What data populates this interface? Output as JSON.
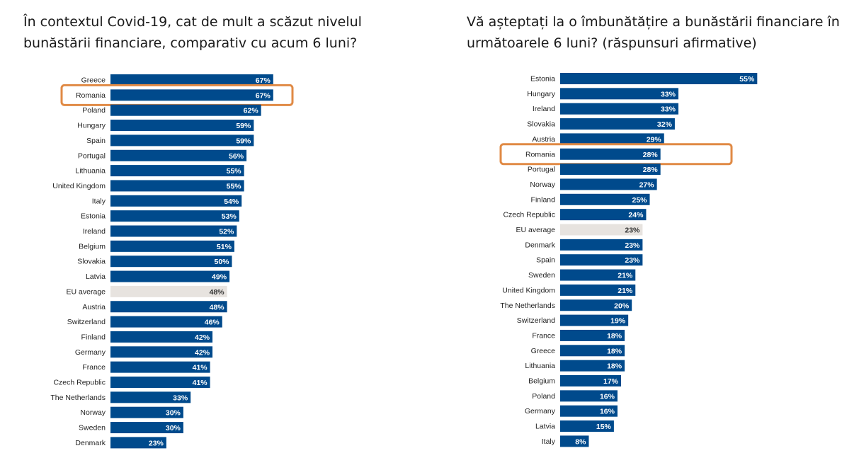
{
  "colors": {
    "bar": "#004a8c",
    "average_bar": "#e7e3df",
    "highlight": "#e08a45",
    "value_text": "#ffffff",
    "average_text": "#333333"
  },
  "chart_data": [
    {
      "type": "bar",
      "orientation": "horizontal",
      "title": "În contextul Covid-19, cat de mult a scăzut nivelul bunăstării financiare, comparativ cu acum 6 luni?",
      "unit": "%",
      "highlight": "Romania",
      "average_category": "EU average",
      "categories": [
        "Greece",
        "Romania",
        "Poland",
        "Hungary",
        "Spain",
        "Portugal",
        "Lithuania",
        "United Kingdom",
        "Italy",
        "Estonia",
        "Ireland",
        "Belgium",
        "Slovakia",
        "Latvia",
        "EU average",
        "Austria",
        "Switzerland",
        "Finland",
        "Germany",
        "France",
        "Czech Republic",
        "The Netherlands",
        "Norway",
        "Sweden",
        "Denmark"
      ],
      "values": [
        67,
        67,
        62,
        59,
        59,
        56,
        55,
        55,
        54,
        53,
        52,
        51,
        50,
        49,
        48,
        48,
        46,
        42,
        42,
        41,
        41,
        33,
        30,
        30,
        23
      ],
      "labels": [
        "67%",
        "67%",
        "62%",
        "59%",
        "59%",
        "56%",
        "55%",
        "55%",
        "54%",
        "53%",
        "52%",
        "51%",
        "50%",
        "49%",
        "48%",
        "48%",
        "46%",
        "42%",
        "42%",
        "41%",
        "41%",
        "33%",
        "30%",
        "30%",
        "23%"
      ]
    },
    {
      "type": "bar",
      "orientation": "horizontal",
      "title": "Vă așteptați la o îmbunătățire a bunăstării financiare în următoarele 6 luni? (răspunsuri afirmative)",
      "unit": "%",
      "highlight": "Romania",
      "average_category": "EU average",
      "categories": [
        "Estonia",
        "Hungary",
        "Ireland",
        "Slovakia",
        "Austria",
        "Romania",
        "Portugal",
        "Norway",
        "Finland",
        "Czech Republic",
        "EU average",
        "Denmark",
        "Spain",
        "Sweden",
        "United Kingdom",
        "The Netherlands",
        "Switzerland",
        "France",
        "Greece",
        "Lithuania",
        "Belgium",
        "Poland",
        "Germany",
        "Latvia",
        "Italy"
      ],
      "values": [
        55,
        33,
        33,
        32,
        29,
        28,
        28,
        27,
        25,
        24,
        23,
        23,
        23,
        21,
        21,
        20,
        19,
        18,
        18,
        18,
        17,
        16,
        16,
        15,
        8
      ],
      "labels": [
        "55%",
        "33%",
        "33%",
        "32%",
        "29%",
        "28%",
        "28%",
        "27%",
        "25%",
        "24%",
        "23%",
        "23%",
        "23%",
        "21%",
        "21%",
        "20%",
        "19%",
        "18%",
        "18%",
        "18%",
        "17%",
        "16%",
        "16%",
        "15%",
        "8%"
      ]
    }
  ]
}
